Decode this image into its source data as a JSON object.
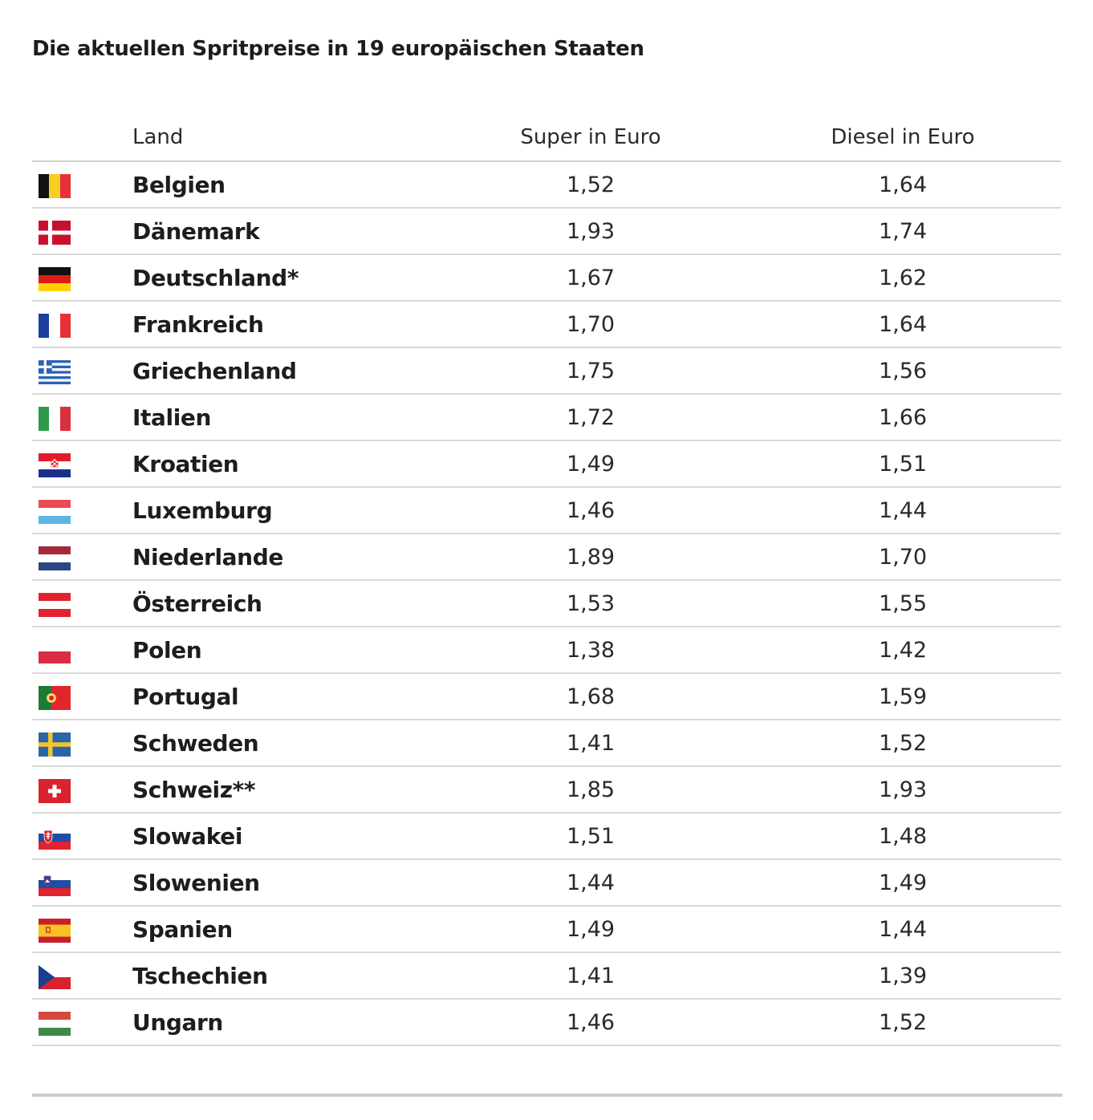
{
  "title": "Die aktuellen Spritpreise in 19 europäischen Staaten",
  "table": {
    "headers": {
      "land": "Land",
      "super": "Super in Euro",
      "diesel": "Diesel in Euro"
    },
    "rows": [
      {
        "flag": "belgium-flag-icon",
        "land": "Belgien",
        "super": "1,52",
        "diesel": "1,64"
      },
      {
        "flag": "denmark-flag-icon",
        "land": "Dänemark",
        "super": "1,93",
        "diesel": "1,74"
      },
      {
        "flag": "germany-flag-icon",
        "land": "Deutschland*",
        "super": "1,67",
        "diesel": "1,62"
      },
      {
        "flag": "france-flag-icon",
        "land": "Frankreich",
        "super": "1,70",
        "diesel": "1,64"
      },
      {
        "flag": "greece-flag-icon",
        "land": "Griechenland",
        "super": "1,75",
        "diesel": "1,56"
      },
      {
        "flag": "italy-flag-icon",
        "land": "Italien",
        "super": "1,72",
        "diesel": "1,66"
      },
      {
        "flag": "croatia-flag-icon",
        "land": "Kroatien",
        "super": "1,49",
        "diesel": "1,51"
      },
      {
        "flag": "luxembourg-flag-icon",
        "land": "Luxemburg",
        "super": "1,46",
        "diesel": "1,44"
      },
      {
        "flag": "netherlands-flag-icon",
        "land": "Niederlande",
        "super": "1,89",
        "diesel": "1,70"
      },
      {
        "flag": "austria-flag-icon",
        "land": "Österreich",
        "super": "1,53",
        "diesel": "1,55"
      },
      {
        "flag": "poland-flag-icon",
        "land": "Polen",
        "super": "1,38",
        "diesel": "1,42"
      },
      {
        "flag": "portugal-flag-icon",
        "land": "Portugal",
        "super": "1,68",
        "diesel": "1,59"
      },
      {
        "flag": "sweden-flag-icon",
        "land": "Schweden",
        "super": "1,41",
        "diesel": "1,52"
      },
      {
        "flag": "switzerland-flag-icon",
        "land": "Schweiz**",
        "super": "1,85",
        "diesel": "1,93"
      },
      {
        "flag": "slovakia-flag-icon",
        "land": "Slowakei",
        "super": "1,51",
        "diesel": "1,48"
      },
      {
        "flag": "slovenia-flag-icon",
        "land": "Slowenien",
        "super": "1,44",
        "diesel": "1,49"
      },
      {
        "flag": "spain-flag-icon",
        "land": "Spanien",
        "super": "1,49",
        "diesel": "1,44"
      },
      {
        "flag": "czechia-flag-icon",
        "land": "Tschechien",
        "super": "1,41",
        "diesel": "1,39"
      },
      {
        "flag": "hungary-flag-icon",
        "land": "Ungarn",
        "super": "1,46",
        "diesel": "1,52"
      }
    ]
  }
}
